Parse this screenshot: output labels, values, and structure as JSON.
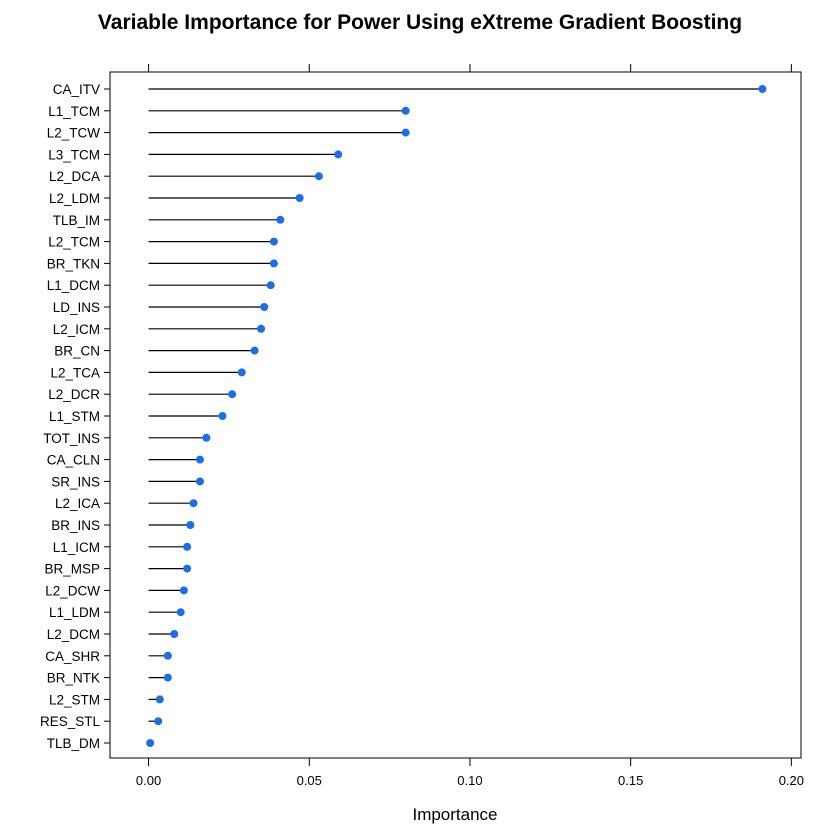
{
  "chart_data": {
    "type": "dotplot",
    "title": "Variable Importance for Power Using eXtreme Gradient Boosting",
    "xlabel": "Importance",
    "ylabel": "",
    "xlim": [
      -0.012,
      0.203
    ],
    "xticks": [
      0.0,
      0.05,
      0.1,
      0.15,
      0.2
    ],
    "xtick_labels": [
      "0.00",
      "0.05",
      "0.10",
      "0.15",
      "0.20"
    ],
    "grid": false,
    "point_color": "#1a6fe8",
    "line_color": "#000000",
    "categories": [
      "CA_ITV",
      "L1_TCM",
      "L2_TCW",
      "L3_TCM",
      "L2_DCA",
      "L2_LDM",
      "TLB_IM",
      "L2_TCM",
      "BR_TKN",
      "L1_DCM",
      "LD_INS",
      "L2_ICM",
      "BR_CN",
      "L2_TCA",
      "L2_DCR",
      "L1_STM",
      "TOT_INS",
      "CA_CLN",
      "SR_INS",
      "L2_ICA",
      "BR_INS",
      "L1_ICM",
      "BR_MSP",
      "L2_DCW",
      "L1_LDM",
      "L2_DCM",
      "CA_SHR",
      "BR_NTK",
      "L2_STM",
      "RES_STL",
      "TLB_DM"
    ],
    "values": [
      0.191,
      0.08,
      0.08,
      0.059,
      0.053,
      0.047,
      0.041,
      0.039,
      0.039,
      0.038,
      0.036,
      0.035,
      0.033,
      0.029,
      0.026,
      0.023,
      0.018,
      0.016,
      0.016,
      0.014,
      0.013,
      0.012,
      0.012,
      0.011,
      0.01,
      0.008,
      0.006,
      0.006,
      0.0035,
      0.003,
      0.0005
    ]
  }
}
